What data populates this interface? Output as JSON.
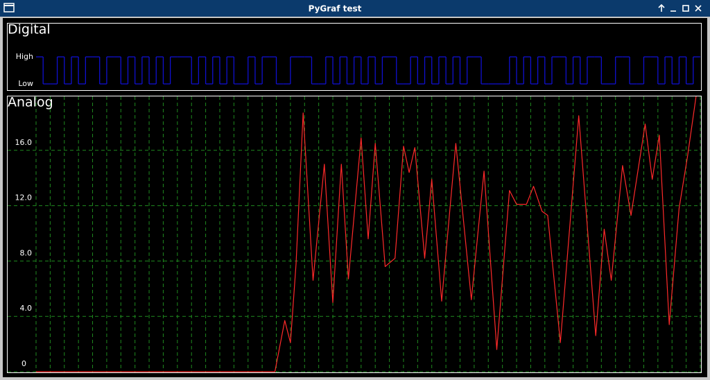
{
  "window": {
    "title": "PyGraf test"
  },
  "chart_data": [
    {
      "type": "step",
      "title": "Digital",
      "color": "#1010d0",
      "ylim": [
        0,
        1
      ],
      "yticks": [
        {
          "value": 0,
          "label": "Low"
        },
        {
          "value": 1,
          "label": "High"
        }
      ],
      "values": [
        1,
        0,
        0,
        1,
        0,
        1,
        0,
        1,
        1,
        0,
        1,
        1,
        0,
        1,
        0,
        1,
        0,
        1,
        0,
        1,
        1,
        1,
        0,
        1,
        0,
        1,
        0,
        1,
        0,
        0,
        1,
        0,
        1,
        1,
        0,
        0,
        1,
        1,
        1,
        0,
        0,
        1,
        0,
        1,
        0,
        1,
        0,
        1,
        0,
        1,
        1,
        0,
        0,
        1,
        0,
        1,
        0,
        1,
        0,
        1,
        0,
        1,
        1,
        0,
        0,
        0,
        0,
        1,
        0,
        1,
        0,
        1,
        0,
        1,
        1,
        0,
        1,
        0,
        1,
        1,
        0,
        0,
        1,
        1,
        0,
        0,
        1,
        1,
        0,
        1,
        0,
        1,
        0,
        1
      ]
    },
    {
      "type": "line",
      "title": "Analog",
      "color": "#ff2a2a",
      "grid": true,
      "xlim": [
        0,
        47
      ],
      "xticks": [
        0,
        1,
        2,
        3,
        4,
        5,
        6,
        7,
        8,
        9,
        10,
        11,
        12,
        13,
        14,
        15,
        16,
        17,
        18,
        19,
        20,
        21,
        22,
        23,
        24,
        25,
        26,
        27,
        28,
        29,
        30,
        31,
        32,
        33,
        34,
        35,
        36,
        37,
        38,
        39,
        40,
        41,
        42,
        43,
        44,
        45,
        46,
        47
      ],
      "ylim": [
        0,
        20
      ],
      "yticks": [
        0,
        {
          "value": 4,
          "label": "4.0"
        },
        {
          "value": 8,
          "label": "8.0"
        },
        {
          "value": 12,
          "label": "12.0"
        },
        {
          "value": 16,
          "label": "16.0"
        }
      ],
      "x": [
        0,
        16.9,
        17.6,
        18.0,
        18.4,
        18.9,
        19.6,
        20.4,
        21.0,
        21.6,
        22.1,
        23.0,
        23.5,
        24.0,
        24.7,
        25.4,
        26.0,
        26.4,
        26.8,
        27.5,
        28.0,
        28.7,
        29.7,
        30.8,
        31.7,
        32.6,
        33.5,
        34.0,
        34.7,
        35.2,
        35.8,
        36.2,
        37.1,
        38.4,
        39.6,
        40.2,
        40.7,
        41.5,
        42.1,
        43.1,
        43.6,
        44.1,
        44.8,
        45.5,
        46.1,
        46.7
      ],
      "values": [
        0,
        0,
        3.7,
        2.1,
        7.8,
        18.7,
        6.6,
        15.0,
        5.0,
        15.0,
        6.7,
        16.9,
        9.6,
        16.5,
        7.6,
        8.2,
        16.3,
        14.4,
        16.2,
        8.2,
        13.9,
        5.1,
        16.5,
        5.2,
        14.5,
        1.6,
        13.1,
        12.1,
        12.1,
        13.4,
        11.6,
        11.3,
        2.1,
        18.5,
        2.6,
        10.3,
        6.6,
        14.9,
        11.3,
        17.9,
        13.9,
        17.1,
        3.4,
        11.8,
        15.6,
        19.9
      ]
    }
  ]
}
